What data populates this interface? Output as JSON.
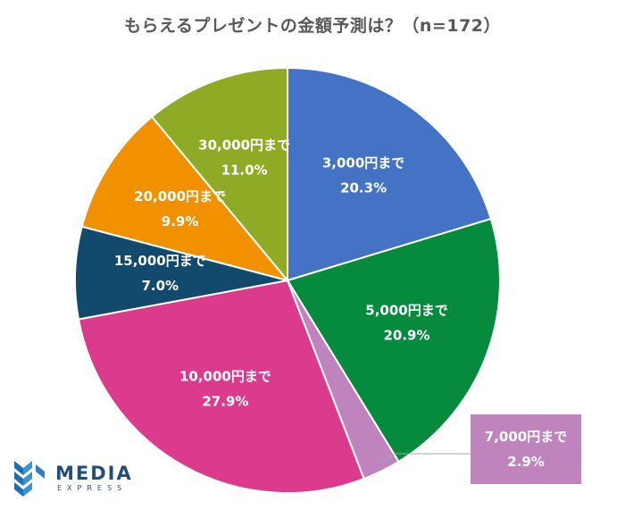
{
  "chart_data": {
    "type": "pie",
    "title": "もらえるプレゼントの金額予測は？（n=172）",
    "slices": [
      {
        "label": "3,000円まで",
        "value": 20.3,
        "display": "20.3%",
        "color": "#4472c4"
      },
      {
        "label": "5,000円まで",
        "value": 20.9,
        "display": "20.9%",
        "color": "#068b3e"
      },
      {
        "label": "7,000円まで",
        "value": 2.9,
        "display": "2.9%",
        "color": "#bf84be"
      },
      {
        "label": "10,000円まで",
        "value": 27.9,
        "display": "27.9%",
        "color": "#dc3a8c"
      },
      {
        "label": "15,000円まで",
        "value": 7.0,
        "display": "7.0%",
        "color": "#124a6e"
      },
      {
        "label": "20,000円まで",
        "value": 9.9,
        "display": "9.9%",
        "color": "#f29100"
      },
      {
        "label": "30,000円まで",
        "value": 11.0,
        "display": "11.0%",
        "color": "#8faa24"
      }
    ],
    "label_placement": "inside, except 7,000円まで in callout box at bottom-right"
  },
  "logo": {
    "word": "MEDIA",
    "sub": "EXPRESS"
  }
}
